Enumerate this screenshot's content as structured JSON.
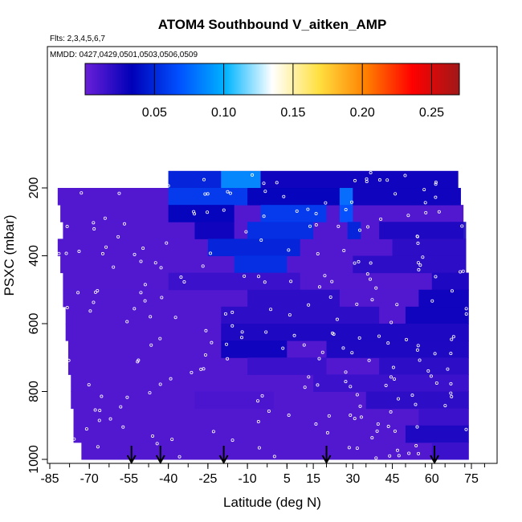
{
  "chart_data": {
    "type": "heatmap",
    "title": "ATOM4 Southbound V_aitken_AMP",
    "subtitle": "Flts: 2,3,4,5,6,7",
    "annotation": "MMDD: 0427,0429,0501,0503,0506,0509",
    "xlabel": "Latitude (deg N)",
    "ylabel": "PSXC (mbar)",
    "xlim": [
      -88,
      88
    ],
    "ylim": [
      1000,
      0
    ],
    "x_ticks": [
      -85,
      -70,
      -55,
      -40,
      -25,
      -10,
      5,
      15,
      30,
      45,
      60,
      75
    ],
    "x_tick_labels": [
      "-85",
      "-70",
      "-55",
      "-40",
      "-25",
      "-10",
      "5",
      "15",
      "30",
      "45",
      "60",
      "75"
    ],
    "y_ticks": [
      200,
      400,
      600,
      800,
      1000
    ],
    "y_tick_labels": [
      "200",
      "400",
      "600",
      "800",
      "1000"
    ],
    "colorbar": {
      "range": [
        0,
        0.27
      ],
      "ticks": [
        0.05,
        0.1,
        0.15,
        0.2,
        0.25
      ],
      "tick_labels": [
        "0.05",
        "0.10",
        "0.15",
        "0.20",
        "0.25"
      ],
      "colors": [
        "#6a1fd8",
        "#0000b8",
        "#0050ff",
        "#00b4ff",
        "#ffffff",
        "#ffe040",
        "#ff8000",
        "#ff0000",
        "#a01818"
      ]
    },
    "flight_markers_lat": [
      -54,
      -43,
      -19,
      20,
      61
    ],
    "pressure_levels": [
      175,
      225,
      275,
      325,
      375,
      425,
      475,
      525,
      575,
      625,
      675,
      725,
      775,
      825,
      875,
      925,
      975
    ],
    "level_lat_ranges": [
      [
        -40,
        70
      ],
      [
        -82,
        71
      ],
      [
        -81,
        72
      ],
      [
        -80,
        72
      ],
      [
        -82,
        73
      ],
      [
        -81,
        73
      ],
      [
        -80,
        74
      ],
      [
        -80,
        74
      ],
      [
        -79,
        74
      ],
      [
        -79,
        74
      ],
      [
        -78,
        74
      ],
      [
        -78,
        74
      ],
      [
        -77,
        74
      ],
      [
        -77,
        74
      ],
      [
        -76,
        74
      ],
      [
        -76,
        74
      ],
      [
        -73,
        74
      ]
    ],
    "cells": [
      {
        "p": 175,
        "lat": [
          -40,
          -20
        ],
        "v": 0.05
      },
      {
        "p": 175,
        "lat": [
          -20,
          -5
        ],
        "v": 0.09
      },
      {
        "p": 175,
        "lat": [
          -5,
          70
        ],
        "v": 0.03
      },
      {
        "p": 225,
        "lat": [
          -40,
          -10
        ],
        "v": 0.06
      },
      {
        "p": 225,
        "lat": [
          -10,
          25
        ],
        "v": 0.035
      },
      {
        "p": 225,
        "lat": [
          25,
          30
        ],
        "v": 0.08
      },
      {
        "p": 225,
        "lat": [
          30,
          71
        ],
        "v": 0.03
      },
      {
        "p": 275,
        "lat": [
          -40,
          -15
        ],
        "v": 0.035
      },
      {
        "p": 275,
        "lat": [
          -5,
          20
        ],
        "v": 0.06
      },
      {
        "p": 275,
        "lat": [
          25,
          30
        ],
        "v": 0.07
      },
      {
        "p": 325,
        "lat": [
          -30,
          -15
        ],
        "v": 0.03
      },
      {
        "p": 325,
        "lat": [
          -10,
          15
        ],
        "v": 0.055
      },
      {
        "p": 325,
        "lat": [
          28,
          33
        ],
        "v": 0.05
      },
      {
        "p": 325,
        "lat": [
          40,
          73
        ],
        "v": 0.025
      },
      {
        "p": 375,
        "lat": [
          -25,
          10
        ],
        "v": 0.05
      },
      {
        "p": 375,
        "lat": [
          45,
          73
        ],
        "v": 0.02
      },
      {
        "p": 425,
        "lat": [
          -15,
          5
        ],
        "v": 0.055
      },
      {
        "p": 425,
        "lat": [
          30,
          73
        ],
        "v": 0.02
      },
      {
        "p": 475,
        "lat": [
          -40,
          10
        ],
        "v": 0.015
      },
      {
        "p": 475,
        "lat": [
          60,
          74
        ],
        "v": 0.025
      },
      {
        "p": 525,
        "lat": [
          -10,
          25
        ],
        "v": 0.02
      },
      {
        "p": 525,
        "lat": [
          55,
          74
        ],
        "v": 0.03
      },
      {
        "p": 575,
        "lat": [
          -20,
          40
        ],
        "v": 0.02
      },
      {
        "p": 575,
        "lat": [
          50,
          74
        ],
        "v": 0.03
      },
      {
        "p": 625,
        "lat": [
          -20,
          74
        ],
        "v": 0.025
      },
      {
        "p": 675,
        "lat": [
          -20,
          5
        ],
        "v": 0.03
      },
      {
        "p": 675,
        "lat": [
          20,
          74
        ],
        "v": 0.025
      },
      {
        "p": 725,
        "lat": [
          -10,
          20
        ],
        "v": 0.015
      },
      {
        "p": 725,
        "lat": [
          40,
          74
        ],
        "v": 0.02
      },
      {
        "p": 775,
        "lat": [
          15,
          74
        ],
        "v": 0.015
      },
      {
        "p": 825,
        "lat": [
          -30,
          0
        ],
        "v": 0.01
      },
      {
        "p": 825,
        "lat": [
          35,
          74
        ],
        "v": 0.02
      },
      {
        "p": 875,
        "lat": [
          55,
          74
        ],
        "v": 0.015
      },
      {
        "p": 925,
        "lat": [
          50,
          74
        ],
        "v": 0.025
      },
      {
        "p": 975,
        "lat": [
          60,
          74
        ],
        "v": 0.015
      }
    ]
  }
}
